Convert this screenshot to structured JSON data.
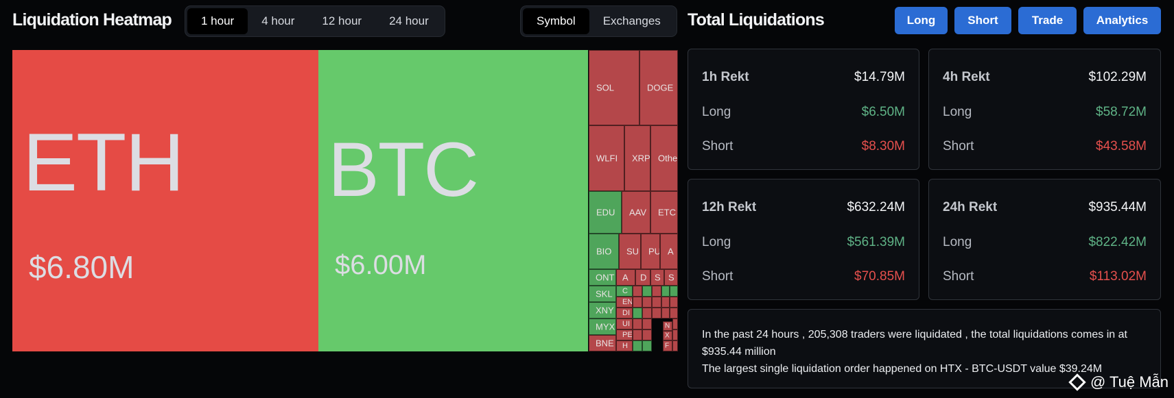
{
  "heatmap": {
    "title": "Liquidation Heatmap",
    "time_tabs": [
      {
        "label": "1 hour",
        "active": true
      },
      {
        "label": "4 hour",
        "active": false
      },
      {
        "label": "12 hour",
        "active": false
      },
      {
        "label": "24 hour",
        "active": false
      }
    ],
    "view_tabs": [
      {
        "label": "Symbol",
        "active": true
      },
      {
        "label": "Exchanges",
        "active": false
      }
    ],
    "tiles": {
      "eth": {
        "symbol": "ETH",
        "value": "$6.80M",
        "color": "#e54b45"
      },
      "btc": {
        "symbol": "BTC",
        "value": "$6.00M",
        "color": "#66c96b"
      },
      "sol": "SOL",
      "doge": "DOGE",
      "wlfi": "WLFI",
      "xrp": "XRP",
      "other": "Othe",
      "edu": "EDU",
      "aave": "AAV",
      "etc": "ETC",
      "bio": "BIO",
      "sui": "SU",
      "pu": "PU",
      "a1": "A",
      "ont": "ONT",
      "a2": "A",
      "d": "D",
      "s1": "S",
      "s2": "S",
      "skl": "SKL",
      "c": "C",
      "xny": "XNY",
      "en": "EN",
      "myx": "MYX",
      "di": "DI",
      "bne": "BNE",
      "ui": "UI",
      "pe": "PE",
      "h": "H",
      "n": "N",
      "x": "X",
      "f": "F"
    }
  },
  "totals": {
    "title": "Total Liquidations",
    "buttons": [
      "Long",
      "Short",
      "Trade",
      "Analytics"
    ],
    "cards": [
      {
        "label": "1h Rekt",
        "total": "$14.79M",
        "long_label": "Long",
        "long": "$6.50M",
        "short_label": "Short",
        "short": "$8.30M"
      },
      {
        "label": "4h Rekt",
        "total": "$102.29M",
        "long_label": "Long",
        "long": "$58.72M",
        "short_label": "Short",
        "short": "$43.58M"
      },
      {
        "label": "12h Rekt",
        "total": "$632.24M",
        "long_label": "Long",
        "long": "$561.39M",
        "short_label": "Short",
        "short": "$70.85M"
      },
      {
        "label": "24h Rekt",
        "total": "$935.44M",
        "long_label": "Long",
        "long": "$822.42M",
        "short_label": "Short",
        "short": "$113.02M"
      }
    ],
    "summary_line1": "In the past 24 hours , 205,308 traders were liquidated , the total liquidations comes in at $935.44 million",
    "summary_line2": "The largest single liquidation order happened on HTX - BTC-USDT value $39.24M"
  },
  "watermark": "@ Tuệ Mẫn",
  "colors": {
    "accent": "#2b6cd4",
    "long": "#5fb386",
    "short": "#e5504d"
  }
}
